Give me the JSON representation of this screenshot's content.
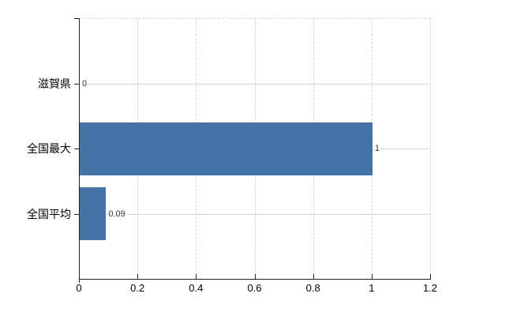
{
  "chart_data": {
    "type": "bar",
    "orientation": "horizontal",
    "title": "",
    "xlabel": "",
    "ylabel": "",
    "categories": [
      "滋賀県",
      "全国最大",
      "全国平均"
    ],
    "values": [
      0,
      1,
      0.09
    ],
    "value_labels": [
      "0",
      "1",
      "0.09"
    ],
    "xlim": [
      0,
      1.2
    ],
    "x_ticks": [
      0,
      0.2,
      0.4,
      0.6,
      0.8,
      1,
      1.2
    ],
    "x_tick_labels": [
      "0",
      "0.2",
      "0.4",
      "0.6",
      "0.8",
      "1",
      "1.2"
    ],
    "grid": "on",
    "legend_position": "none",
    "colors": {
      "bar": "#4572a7",
      "grid": "#d6d6d6",
      "axis": "#222222",
      "tick_label": "#000000",
      "value_label": "#333333",
      "background": "#ffffff"
    }
  }
}
